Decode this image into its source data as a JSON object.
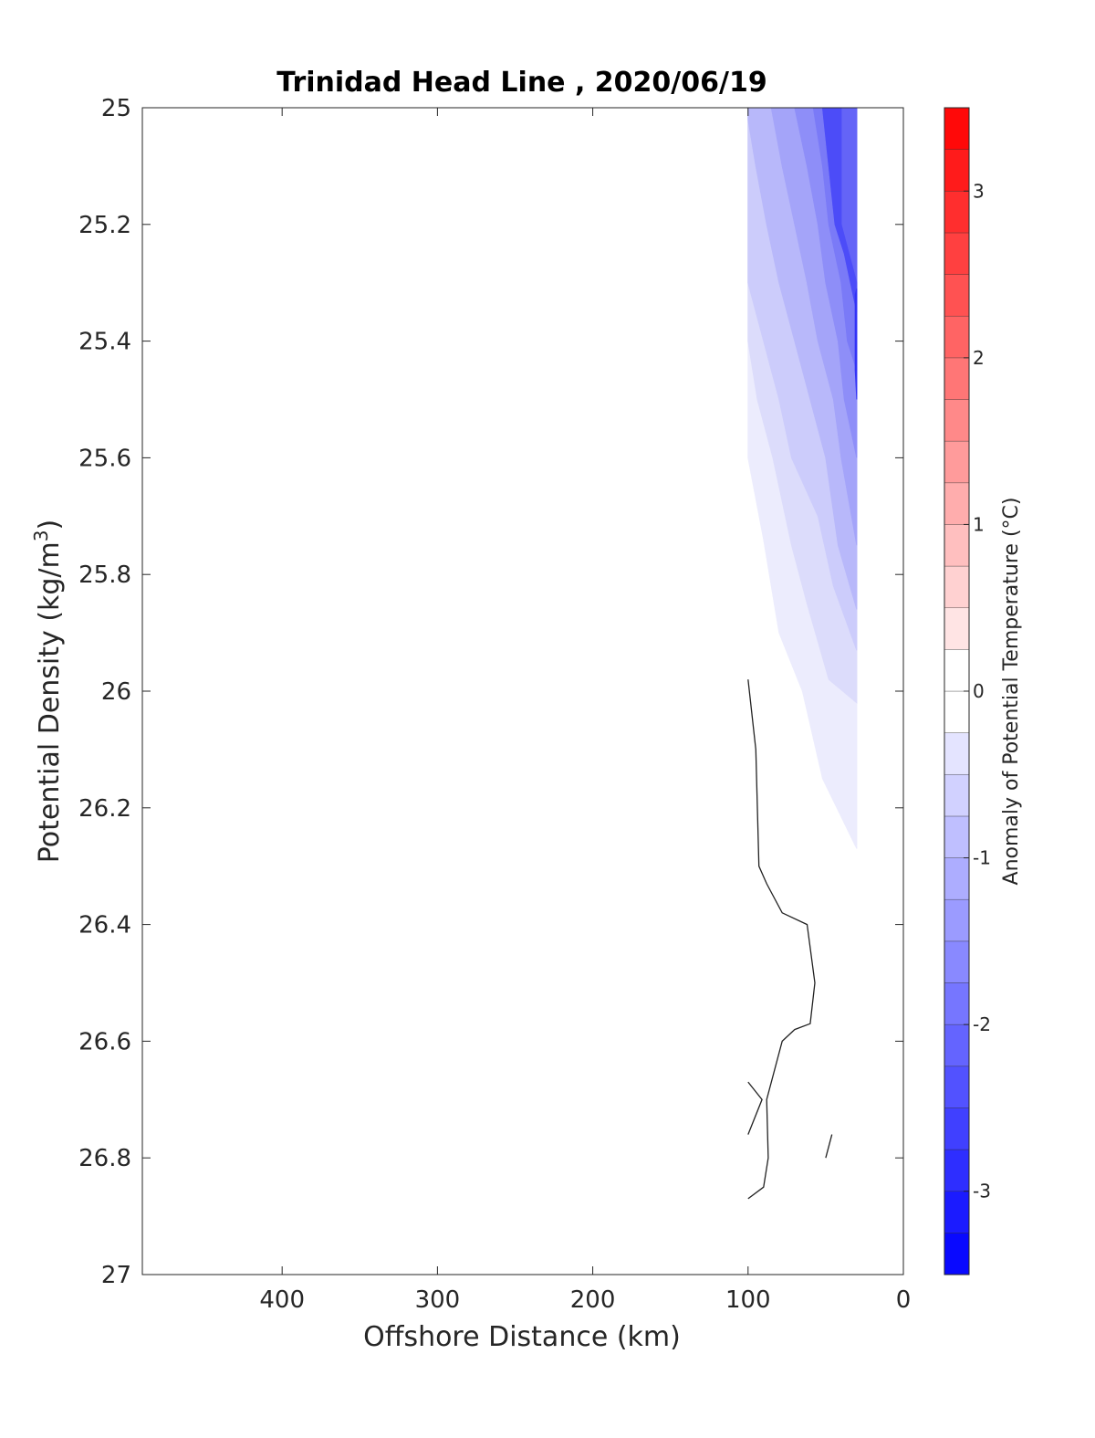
{
  "chart_data": {
    "type": "contour",
    "title": "Trinidad Head Line , 2020/06/19",
    "xlabel": "Offshore Distance (km)",
    "ylabel": "Potential Density (kg/m",
    "ylabel_sup": "3",
    "ylabel_close": ")",
    "xlim": [
      490,
      0
    ],
    "x_reversed": true,
    "ylim": [
      25,
      27
    ],
    "y_reversed": true,
    "x_ticks": [
      400,
      300,
      200,
      100,
      0
    ],
    "x_tick_labels": [
      "400",
      "300",
      "200",
      "100",
      "0"
    ],
    "y_ticks": [
      25,
      25.2,
      25.4,
      25.6,
      25.8,
      26,
      26.2,
      26.4,
      26.6,
      26.8,
      27
    ],
    "y_tick_labels": [
      "25",
      "25.2",
      "25.4",
      "25.6",
      "25.8",
      "26",
      "26.2",
      "26.4",
      "26.6",
      "26.8",
      "27"
    ],
    "colorbar": {
      "label": "Anomaly of Potential Temperature (°C)",
      "range": [
        -3.5,
        3.5
      ],
      "step": 0.25,
      "ticks": [
        3,
        2,
        1,
        0,
        -1,
        -2,
        -3
      ],
      "tick_labels": [
        "3",
        "2",
        "1",
        "0",
        "-1",
        "-2",
        "-3"
      ],
      "color_min": "#0000ff",
      "color_zero": "#ffffff",
      "color_max": "#ff0000"
    },
    "filled_levels": [
      {
        "level": -0.25,
        "color": "#ececfd",
        "points": [
          [
            100,
            25
          ],
          [
            30,
            25
          ],
          [
            30,
            26.27
          ],
          [
            52,
            26.15
          ],
          [
            65,
            26.0
          ],
          [
            80,
            25.9
          ],
          [
            90,
            25.74
          ],
          [
            100,
            25.6
          ]
        ]
      },
      {
        "level": -0.5,
        "color": "#dcdcfb",
        "points": [
          [
            100,
            25
          ],
          [
            30,
            25
          ],
          [
            30,
            26.02
          ],
          [
            48,
            25.98
          ],
          [
            62,
            25.85
          ],
          [
            72,
            25.75
          ],
          [
            84,
            25.6
          ],
          [
            94,
            25.5
          ],
          [
            100,
            25.4
          ]
        ]
      },
      {
        "level": -0.75,
        "color": "#ccccfb",
        "points": [
          [
            100,
            25
          ],
          [
            30,
            25
          ],
          [
            30,
            25.93
          ],
          [
            45,
            25.82
          ],
          [
            55,
            25.7
          ],
          [
            72,
            25.6
          ],
          [
            80,
            25.5
          ],
          [
            90,
            25.4
          ],
          [
            100,
            25.3
          ]
        ]
      },
      {
        "level": -1.0,
        "color": "#b8b8fa",
        "points": [
          [
            100,
            25
          ],
          [
            30,
            25
          ],
          [
            30,
            25.86
          ],
          [
            42,
            25.75
          ],
          [
            50,
            25.6
          ],
          [
            60,
            25.5
          ],
          [
            70,
            25.4
          ],
          [
            80,
            25.3
          ],
          [
            88,
            25.2
          ],
          [
            95,
            25.1
          ],
          [
            100,
            25.02
          ]
        ]
      },
      {
        "level": -1.25,
        "color": "#a4a4f9",
        "points": [
          [
            95,
            25
          ],
          [
            30,
            25
          ],
          [
            30,
            25.75
          ],
          [
            40,
            25.6
          ],
          [
            45,
            25.5
          ],
          [
            55,
            25.4
          ],
          [
            62,
            25.3
          ],
          [
            70,
            25.2
          ],
          [
            78,
            25.1
          ],
          [
            85,
            25.0
          ]
        ]
      },
      {
        "level": -1.5,
        "color": "#8e8ef8",
        "points": [
          [
            85,
            25
          ],
          [
            30,
            25
          ],
          [
            30,
            25.6
          ],
          [
            38,
            25.5
          ],
          [
            42,
            25.4
          ],
          [
            50,
            25.3
          ],
          [
            55,
            25.2
          ],
          [
            62,
            25.1
          ],
          [
            70,
            25.0
          ]
        ]
      },
      {
        "level": -1.75,
        "color": "#7a7af7",
        "points": [
          [
            70,
            25
          ],
          [
            30,
            25
          ],
          [
            30,
            25.45
          ],
          [
            36,
            25.4
          ],
          [
            40,
            25.3
          ],
          [
            48,
            25.2
          ],
          [
            52,
            25.1
          ],
          [
            58,
            25.0
          ]
        ]
      },
      {
        "level": -2.0,
        "color": "#6464f7",
        "points": [
          [
            58,
            25
          ],
          [
            30,
            25
          ],
          [
            30,
            25.35
          ],
          [
            34,
            25.3
          ],
          [
            38,
            25.25
          ],
          [
            44,
            25.2
          ],
          [
            48,
            25.1
          ],
          [
            52,
            25.0
          ]
        ]
      },
      {
        "level": -2.25,
        "color": "#4c4cf8",
        "points": [
          [
            52,
            25
          ],
          [
            40,
            25
          ],
          [
            40,
            25.2
          ],
          [
            30,
            25.3
          ],
          [
            30,
            25.35
          ],
          [
            34,
            25.3
          ],
          [
            38,
            25.25
          ],
          [
            44,
            25.2
          ],
          [
            48,
            25.1
          ]
        ]
      },
      {
        "level": -2.5,
        "color": "#3333f6",
        "points": [
          [
            31,
            25.32
          ],
          [
            30,
            25.31
          ],
          [
            30,
            25.5
          ],
          [
            31,
            25.45
          ]
        ]
      }
    ],
    "zero_contours": [
      {
        "points": [
          [
            100,
            25.98
          ],
          [
            95,
            26.1
          ],
          [
            93,
            26.3
          ],
          [
            88,
            26.33
          ],
          [
            78,
            26.38
          ],
          [
            62,
            26.4
          ],
          [
            57,
            26.5
          ],
          [
            60,
            26.57
          ],
          [
            70,
            26.58
          ],
          [
            78,
            26.6
          ],
          [
            88,
            26.7
          ],
          [
            87,
            26.8
          ],
          [
            90,
            26.85
          ],
          [
            100,
            26.87
          ]
        ]
      },
      {
        "points": [
          [
            100,
            26.67
          ],
          [
            91,
            26.7
          ],
          [
            100,
            26.76
          ]
        ]
      },
      {
        "points": [
          [
            46,
            26.76
          ],
          [
            50,
            26.8
          ]
        ]
      }
    ]
  }
}
